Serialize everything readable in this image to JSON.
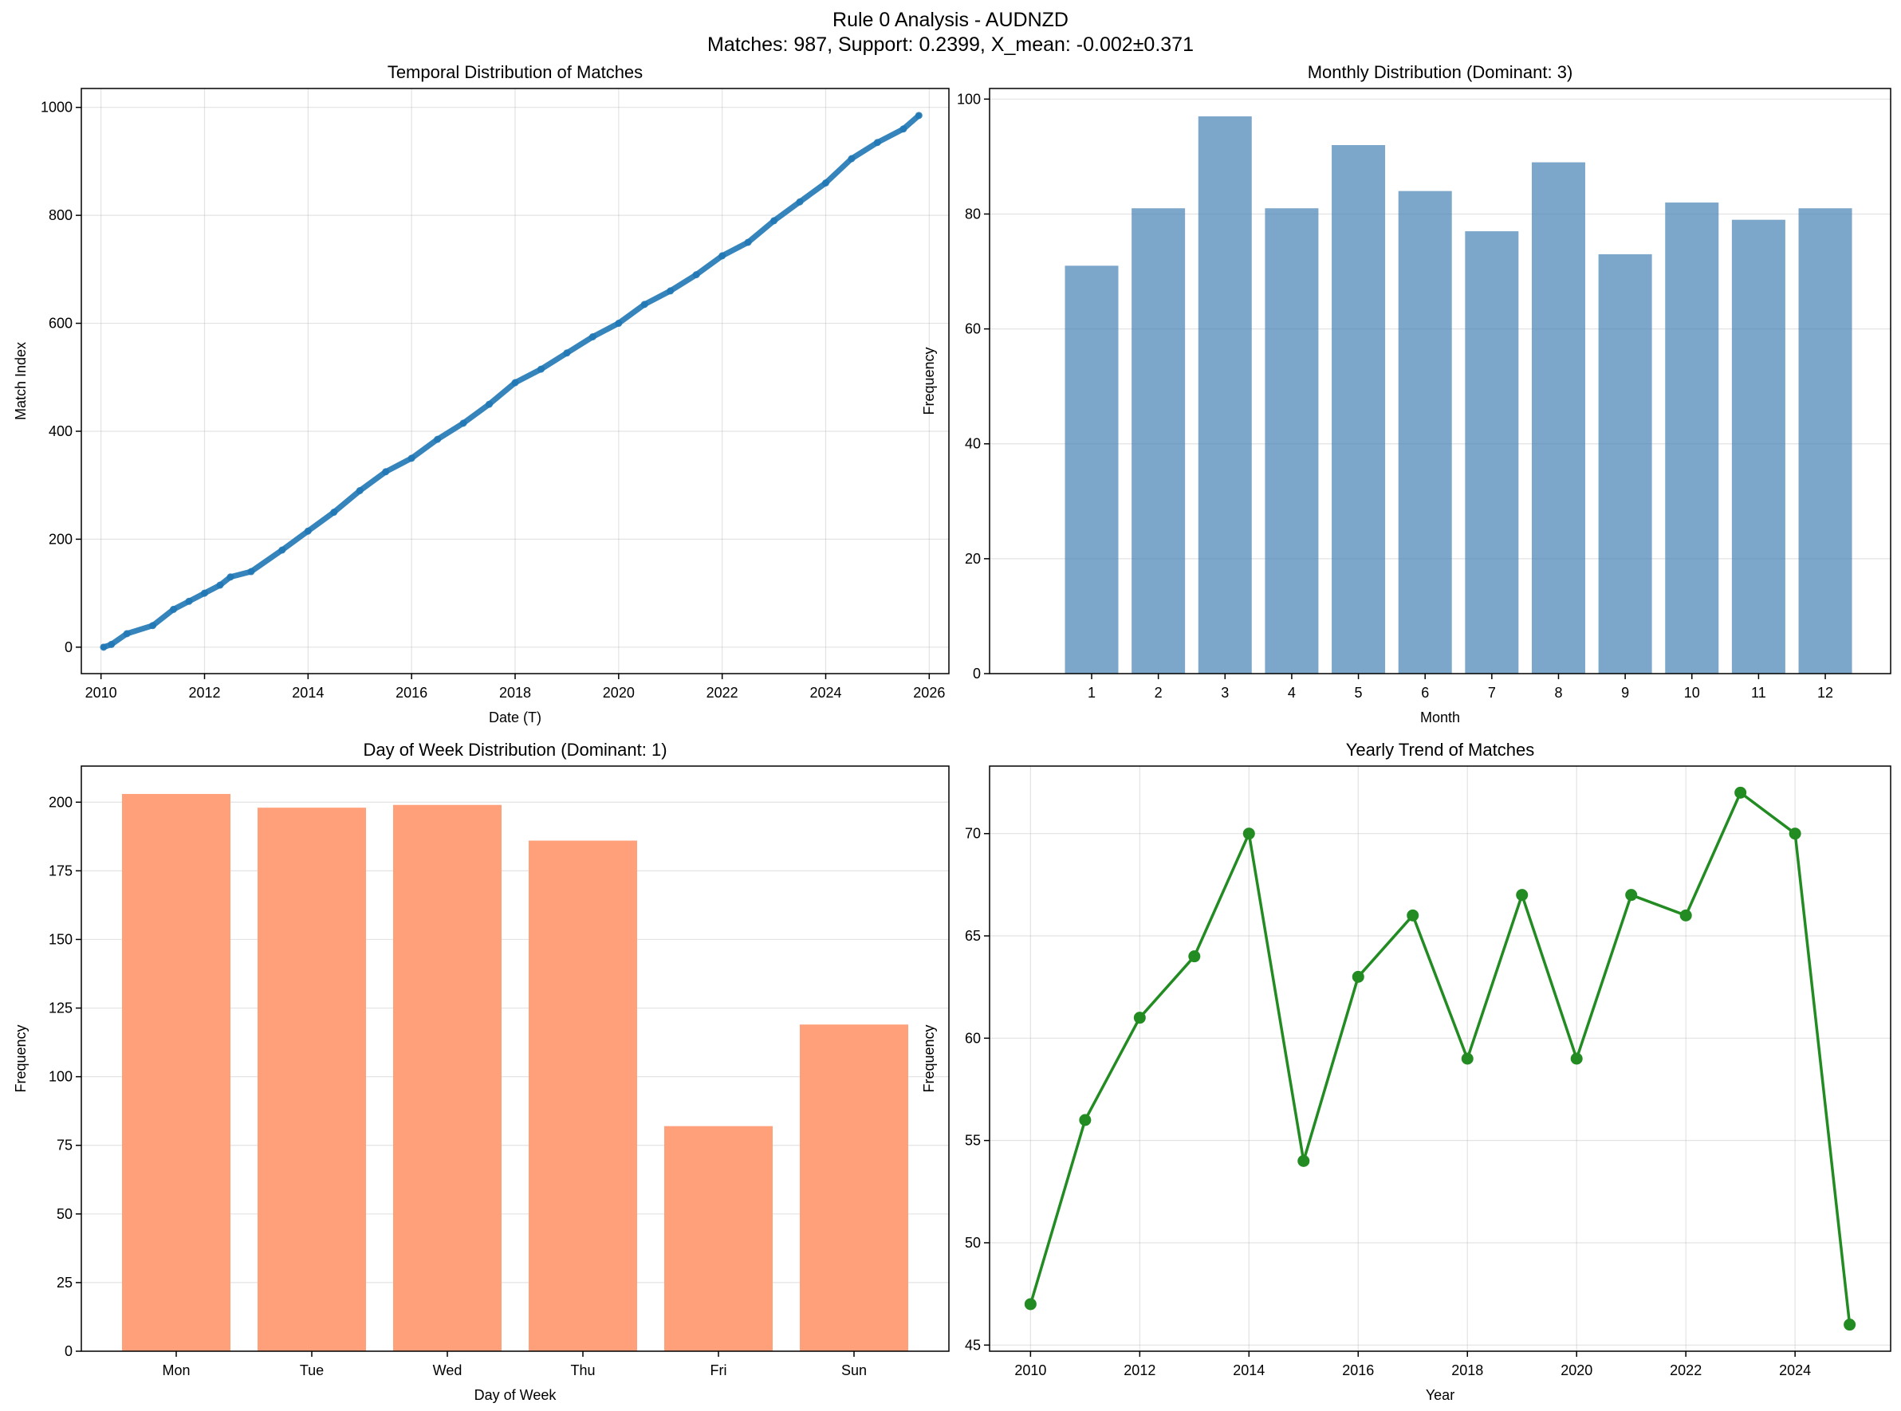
{
  "figure": {
    "title_line1": "Rule 0 Analysis - AUDNZD",
    "title_line2": "Matches: 987, Support: 0.2399, X_mean: -0.002±0.371"
  },
  "chart_data": [
    {
      "id": "temporal",
      "type": "scatter",
      "title": "Temporal Distribution of Matches",
      "xlabel": "Date (T)",
      "ylabel": "Match Index",
      "color": "#1f77b4",
      "x_ticks": [
        "2010",
        "2012",
        "2014",
        "2016",
        "2018",
        "2020",
        "2022",
        "2024",
        "2026"
      ],
      "y_ticks": [
        0,
        200,
        400,
        600,
        800,
        1000
      ],
      "xlim": [
        2009.62,
        2026.38
      ],
      "ylim": [
        -49,
        1035
      ],
      "grid": true,
      "series": [
        {
          "x": [
            2010.05,
            2010.2,
            2010.5,
            2011.0,
            2011.4,
            2011.7,
            2012.0,
            2012.3,
            2012.5,
            2012.9,
            2013.5,
            2014.0,
            2014.5,
            2015.0,
            2015.5,
            2016.0,
            2016.5,
            2017.0,
            2017.5,
            2018.0,
            2018.5,
            2019.0,
            2019.5,
            2020.0,
            2020.5,
            2021.0,
            2021.5,
            2022.0,
            2022.5,
            2023.0,
            2023.5,
            2024.0,
            2024.5,
            2025.0,
            2025.5,
            2025.8
          ],
          "y": [
            0,
            5,
            25,
            40,
            70,
            85,
            100,
            115,
            130,
            140,
            180,
            215,
            250,
            290,
            325,
            350,
            385,
            415,
            450,
            490,
            515,
            545,
            575,
            600,
            635,
            660,
            690,
            725,
            750,
            790,
            825,
            860,
            905,
            935,
            960,
            985
          ]
        }
      ]
    },
    {
      "id": "monthly",
      "type": "bar",
      "title": "Monthly Distribution (Dominant: 3)",
      "xlabel": "Month",
      "ylabel": "Frequency",
      "color": "#4682b4",
      "categories": [
        "1",
        "2",
        "3",
        "4",
        "5",
        "6",
        "7",
        "8",
        "9",
        "10",
        "11",
        "12"
      ],
      "values": [
        71,
        81,
        97,
        81,
        92,
        84,
        77,
        89,
        73,
        82,
        79,
        81
      ],
      "y_ticks": [
        0,
        20,
        40,
        60,
        80,
        100
      ],
      "ylim": [
        0,
        101.85
      ],
      "grid": true
    },
    {
      "id": "dow",
      "type": "bar",
      "title": "Day of Week Distribution (Dominant: 1)",
      "xlabel": "Day of Week",
      "ylabel": "Frequency",
      "color": "#ffa07a",
      "categories": [
        "Mon",
        "Tue",
        "Wed",
        "Thu",
        "Fri",
        "Sun"
      ],
      "values": [
        203,
        198,
        199,
        186,
        82,
        119
      ],
      "y_ticks": [
        0,
        25,
        50,
        75,
        100,
        125,
        150,
        175,
        200
      ],
      "ylim": [
        0,
        213.15
      ],
      "grid": true
    },
    {
      "id": "yearly",
      "type": "line",
      "title": "Yearly Trend of Matches",
      "xlabel": "Year",
      "ylabel": "Frequency",
      "color": "#228b22",
      "x": [
        2010,
        2011,
        2012,
        2013,
        2014,
        2015,
        2016,
        2017,
        2018,
        2019,
        2020,
        2021,
        2022,
        2023,
        2024,
        2025
      ],
      "values": [
        47,
        56,
        61,
        64,
        70,
        54,
        63,
        66,
        59,
        67,
        59,
        67,
        66,
        72,
        70,
        46
      ],
      "x_ticks": [
        "2010",
        "2012",
        "2014",
        "2016",
        "2018",
        "2020",
        "2022",
        "2024"
      ],
      "y_ticks": [
        45,
        50,
        55,
        60,
        65,
        70
      ],
      "xlim": [
        2009.25,
        2025.75
      ],
      "ylim": [
        44.7,
        73.3
      ],
      "grid": true
    }
  ]
}
